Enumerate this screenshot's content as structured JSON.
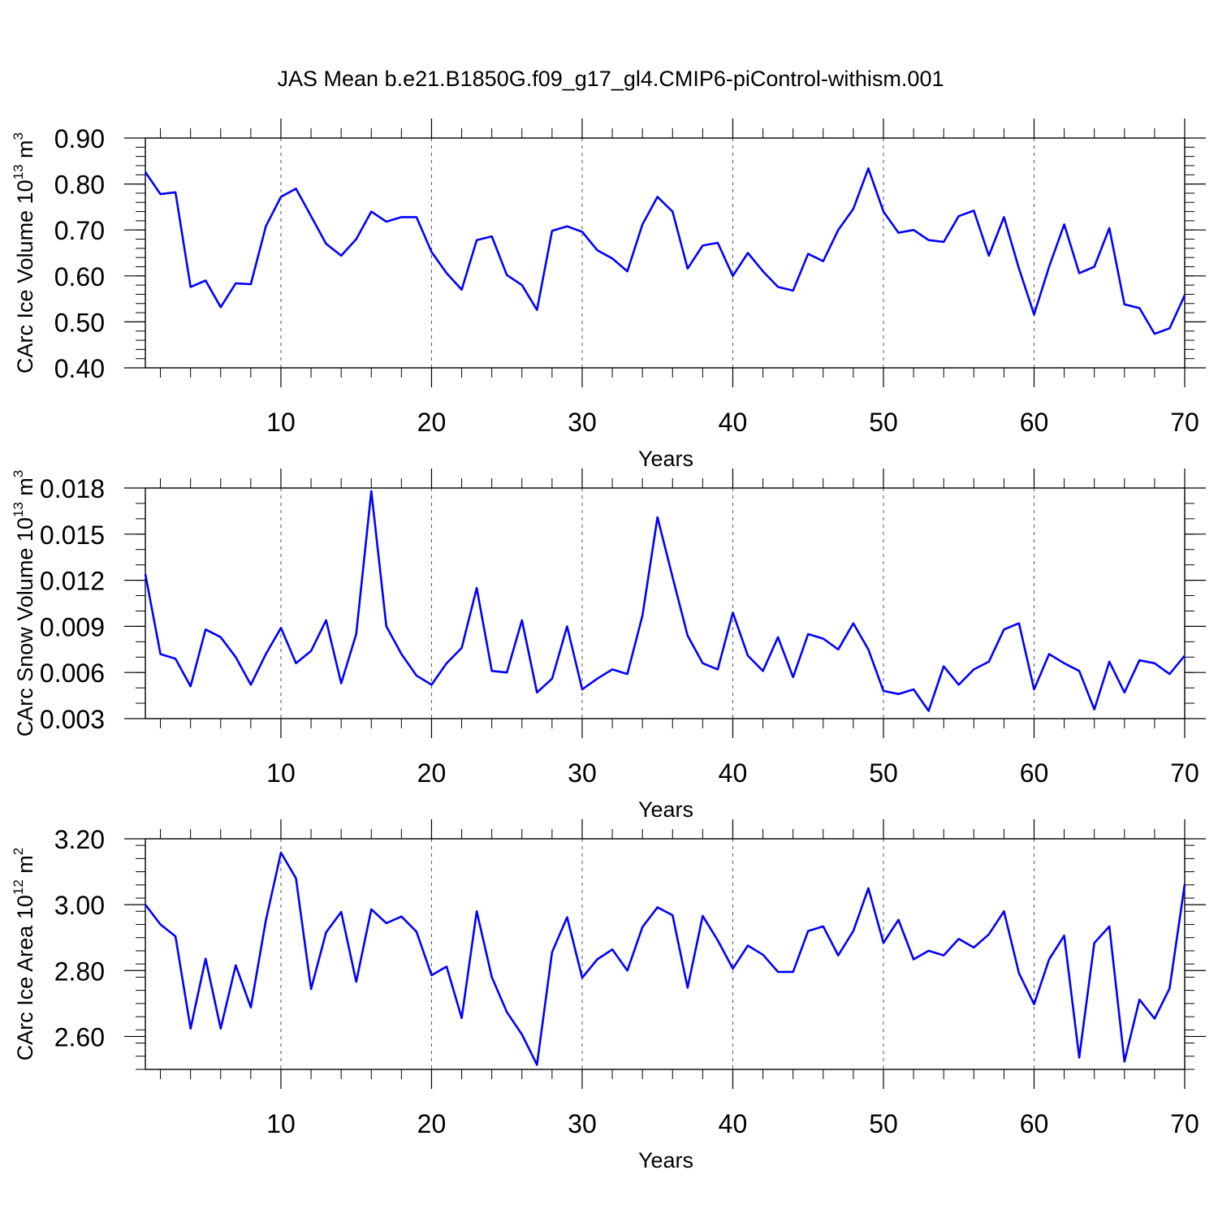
{
  "title": "JAS Mean b.e21.B1850G.f09_g17_gl4.CMIP6-piControl-withism.001",
  "chart_data": [
    {
      "type": "line",
      "xlabel": "Years",
      "ylabel": {
        "pre": "CArc Ice Volume 10",
        "exp": "13",
        "mid": " m",
        "pow": "3"
      },
      "xlim": [
        1,
        70
      ],
      "ylim": [
        0.4,
        0.9
      ],
      "xticks": [
        "10",
        "20",
        "30",
        "40",
        "50",
        "60",
        "70"
      ],
      "yticks": [
        "0.40",
        "0.50",
        "0.60",
        "0.70",
        "0.80",
        "0.90"
      ],
      "ytick_values": [
        0.4,
        0.5,
        0.6,
        0.7,
        0.8,
        0.9
      ],
      "ymin_step": 0.02,
      "grid": "dashed vertical at major x ticks",
      "color": "#0000ff",
      "x": [
        1,
        2,
        3,
        4,
        5,
        6,
        7,
        8,
        9,
        10,
        11,
        12,
        13,
        14,
        15,
        16,
        17,
        18,
        19,
        20,
        21,
        22,
        23,
        24,
        25,
        26,
        27,
        28,
        29,
        30,
        31,
        32,
        33,
        34,
        35,
        36,
        37,
        38,
        39,
        40,
        41,
        42,
        43,
        44,
        45,
        46,
        47,
        48,
        49,
        50,
        51,
        52,
        53,
        54,
        55,
        56,
        57,
        58,
        59,
        60,
        61,
        62,
        63,
        64,
        65,
        66,
        67,
        68,
        69,
        70
      ],
      "y": [
        0.826,
        0.778,
        0.782,
        0.576,
        0.59,
        0.532,
        0.584,
        0.582,
        0.708,
        0.772,
        0.79,
        0.73,
        0.67,
        0.644,
        0.68,
        0.74,
        0.718,
        0.728,
        0.728,
        0.652,
        0.606,
        0.57,
        0.678,
        0.686,
        0.602,
        0.58,
        0.526,
        0.698,
        0.708,
        0.696,
        0.656,
        0.638,
        0.61,
        0.712,
        0.772,
        0.74,
        0.616,
        0.666,
        0.672,
        0.6,
        0.65,
        0.61,
        0.576,
        0.568,
        0.648,
        0.632,
        0.7,
        0.746,
        0.834,
        0.74,
        0.694,
        0.7,
        0.678,
        0.674,
        0.73,
        0.742,
        0.644,
        0.728,
        0.616,
        0.516,
        0.62,
        0.712,
        0.606,
        0.62,
        0.704,
        0.538,
        0.53,
        0.474,
        0.486,
        0.558
      ]
    },
    {
      "type": "line",
      "xlabel": "Years",
      "ylabel": {
        "pre": "CArc Snow Volume 10",
        "exp": "13",
        "mid": " m",
        "pow": "3"
      },
      "xlim": [
        1,
        70
      ],
      "ylim": [
        0.003,
        0.018
      ],
      "xticks": [
        "10",
        "20",
        "30",
        "40",
        "50",
        "60",
        "70"
      ],
      "yticks": [
        "0.003",
        "0.006",
        "0.009",
        "0.012",
        "0.015",
        "0.018"
      ],
      "ytick_values": [
        0.003,
        0.006,
        0.009,
        0.012,
        0.015,
        0.018
      ],
      "ymin_step": 0.001,
      "grid": "dashed vertical at major x ticks",
      "color": "#0000ff",
      "x": [
        1,
        2,
        3,
        4,
        5,
        6,
        7,
        8,
        9,
        10,
        11,
        12,
        13,
        14,
        15,
        16,
        17,
        18,
        19,
        20,
        21,
        22,
        23,
        24,
        25,
        26,
        27,
        28,
        29,
        30,
        31,
        32,
        33,
        34,
        35,
        36,
        37,
        38,
        39,
        40,
        41,
        42,
        43,
        44,
        45,
        46,
        47,
        48,
        49,
        50,
        51,
        52,
        53,
        54,
        55,
        56,
        57,
        58,
        59,
        60,
        61,
        62,
        63,
        64,
        65,
        66,
        67,
        68,
        69,
        70
      ],
      "y": [
        0.0124,
        0.0072,
        0.0069,
        0.0051,
        0.0088,
        0.0083,
        0.007,
        0.0052,
        0.0072,
        0.0089,
        0.0066,
        0.0074,
        0.0094,
        0.0053,
        0.0085,
        0.0178,
        0.009,
        0.0072,
        0.0058,
        0.0052,
        0.0066,
        0.0076,
        0.0115,
        0.0061,
        0.006,
        0.0094,
        0.0047,
        0.0056,
        0.009,
        0.0049,
        0.0056,
        0.0062,
        0.0059,
        0.0097,
        0.0161,
        0.0122,
        0.0084,
        0.0066,
        0.0062,
        0.0099,
        0.0071,
        0.0061,
        0.0083,
        0.0057,
        0.0085,
        0.0082,
        0.0075,
        0.0092,
        0.0075,
        0.0048,
        0.0046,
        0.0049,
        0.0035,
        0.0064,
        0.0052,
        0.0062,
        0.0067,
        0.0088,
        0.0092,
        0.0049,
        0.0072,
        0.0066,
        0.0061,
        0.0036,
        0.0067,
        0.0047,
        0.0068,
        0.0066,
        0.0059,
        0.0071
      ]
    },
    {
      "type": "line",
      "xlabel": "Years",
      "ylabel": {
        "pre": "CArc Ice Area 10",
        "exp": "12",
        "mid": " m",
        "pow": "2"
      },
      "xlim": [
        1,
        70
      ],
      "ylim": [
        2.5,
        3.2
      ],
      "xticks": [
        "10",
        "20",
        "30",
        "40",
        "50",
        "60",
        "70"
      ],
      "yticks": [
        "2.60",
        "2.80",
        "3.00",
        "3.20"
      ],
      "ytick_values": [
        2.6,
        2.8,
        3.0,
        3.2
      ],
      "ymin_step": 0.04,
      "grid": "dashed vertical at major x ticks",
      "color": "#0000ff",
      "x": [
        1,
        2,
        3,
        4,
        5,
        6,
        7,
        8,
        9,
        10,
        11,
        12,
        13,
        14,
        15,
        16,
        17,
        18,
        19,
        20,
        21,
        22,
        23,
        24,
        25,
        26,
        27,
        28,
        29,
        30,
        31,
        32,
        33,
        34,
        35,
        36,
        37,
        38,
        39,
        40,
        41,
        42,
        43,
        44,
        45,
        46,
        47,
        48,
        49,
        50,
        51,
        52,
        53,
        54,
        55,
        56,
        57,
        58,
        59,
        60,
        61,
        62,
        63,
        64,
        65,
        66,
        67,
        68,
        69,
        70
      ],
      "y": [
        3.0,
        2.94,
        2.904,
        2.624,
        2.836,
        2.624,
        2.816,
        2.688,
        2.952,
        3.158,
        3.08,
        2.744,
        2.916,
        2.978,
        2.766,
        2.986,
        2.944,
        2.964,
        2.918,
        2.786,
        2.812,
        2.656,
        2.98,
        2.78,
        2.674,
        2.606,
        2.514,
        2.856,
        2.962,
        2.778,
        2.834,
        2.864,
        2.8,
        2.932,
        2.992,
        2.968,
        2.748,
        2.966,
        2.892,
        2.806,
        2.876,
        2.848,
        2.796,
        2.796,
        2.92,
        2.934,
        2.846,
        2.92,
        3.05,
        2.884,
        2.954,
        2.834,
        2.86,
        2.846,
        2.896,
        2.87,
        2.91,
        2.98,
        2.792,
        2.698,
        2.834,
        2.906,
        2.536,
        2.884,
        2.934,
        2.524,
        2.712,
        2.654,
        2.746,
        3.062
      ]
    }
  ]
}
